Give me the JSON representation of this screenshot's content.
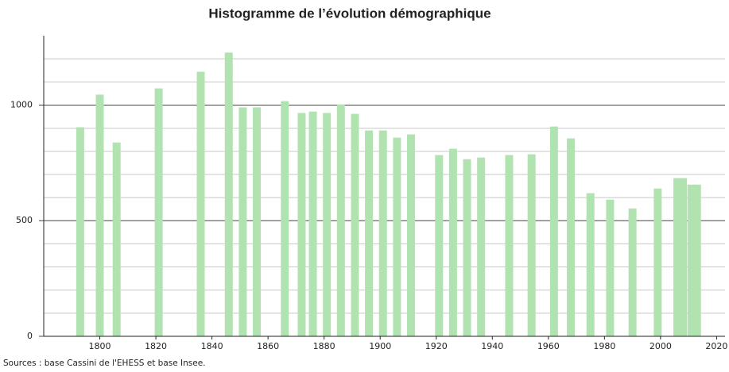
{
  "chart_data": {
    "type": "bar",
    "title": "Histogramme de l’évolution démographique",
    "source": "Sources : base Cassini de l'EHESS et base Insee.",
    "x": [
      1793,
      1800,
      1806,
      1821,
      1836,
      1846,
      1851,
      1856,
      1866,
      1872,
      1876,
      1881,
      1886,
      1891,
      1896,
      1901,
      1906,
      1911,
      1921,
      1926,
      1931,
      1936,
      1946,
      1954,
      1962,
      1968,
      1975,
      1982,
      1990,
      1999,
      2006,
      2008,
      2011,
      2013
    ],
    "values": [
      904,
      1045,
      838,
      1072,
      1144,
      1227,
      990,
      990,
      1017,
      966,
      972,
      966,
      1003,
      962,
      890,
      890,
      859,
      873,
      784,
      811,
      766,
      773,
      784,
      787,
      907,
      856,
      619,
      591,
      553,
      639,
      684,
      684,
      656,
      656
    ],
    "color": "#b1e3b1",
    "xlim": [
      1780,
      2023
    ],
    "xticks": [
      1800,
      1820,
      1840,
      1860,
      1880,
      1900,
      1920,
      1940,
      1960,
      1980,
      2000,
      2020
    ],
    "ylim": [
      0,
      1300
    ],
    "yticks": [
      0,
      500,
      1000
    ],
    "minor_yticks": [
      100,
      200,
      300,
      400,
      600,
      700,
      800,
      900,
      1100,
      1200
    ],
    "grid": true
  }
}
